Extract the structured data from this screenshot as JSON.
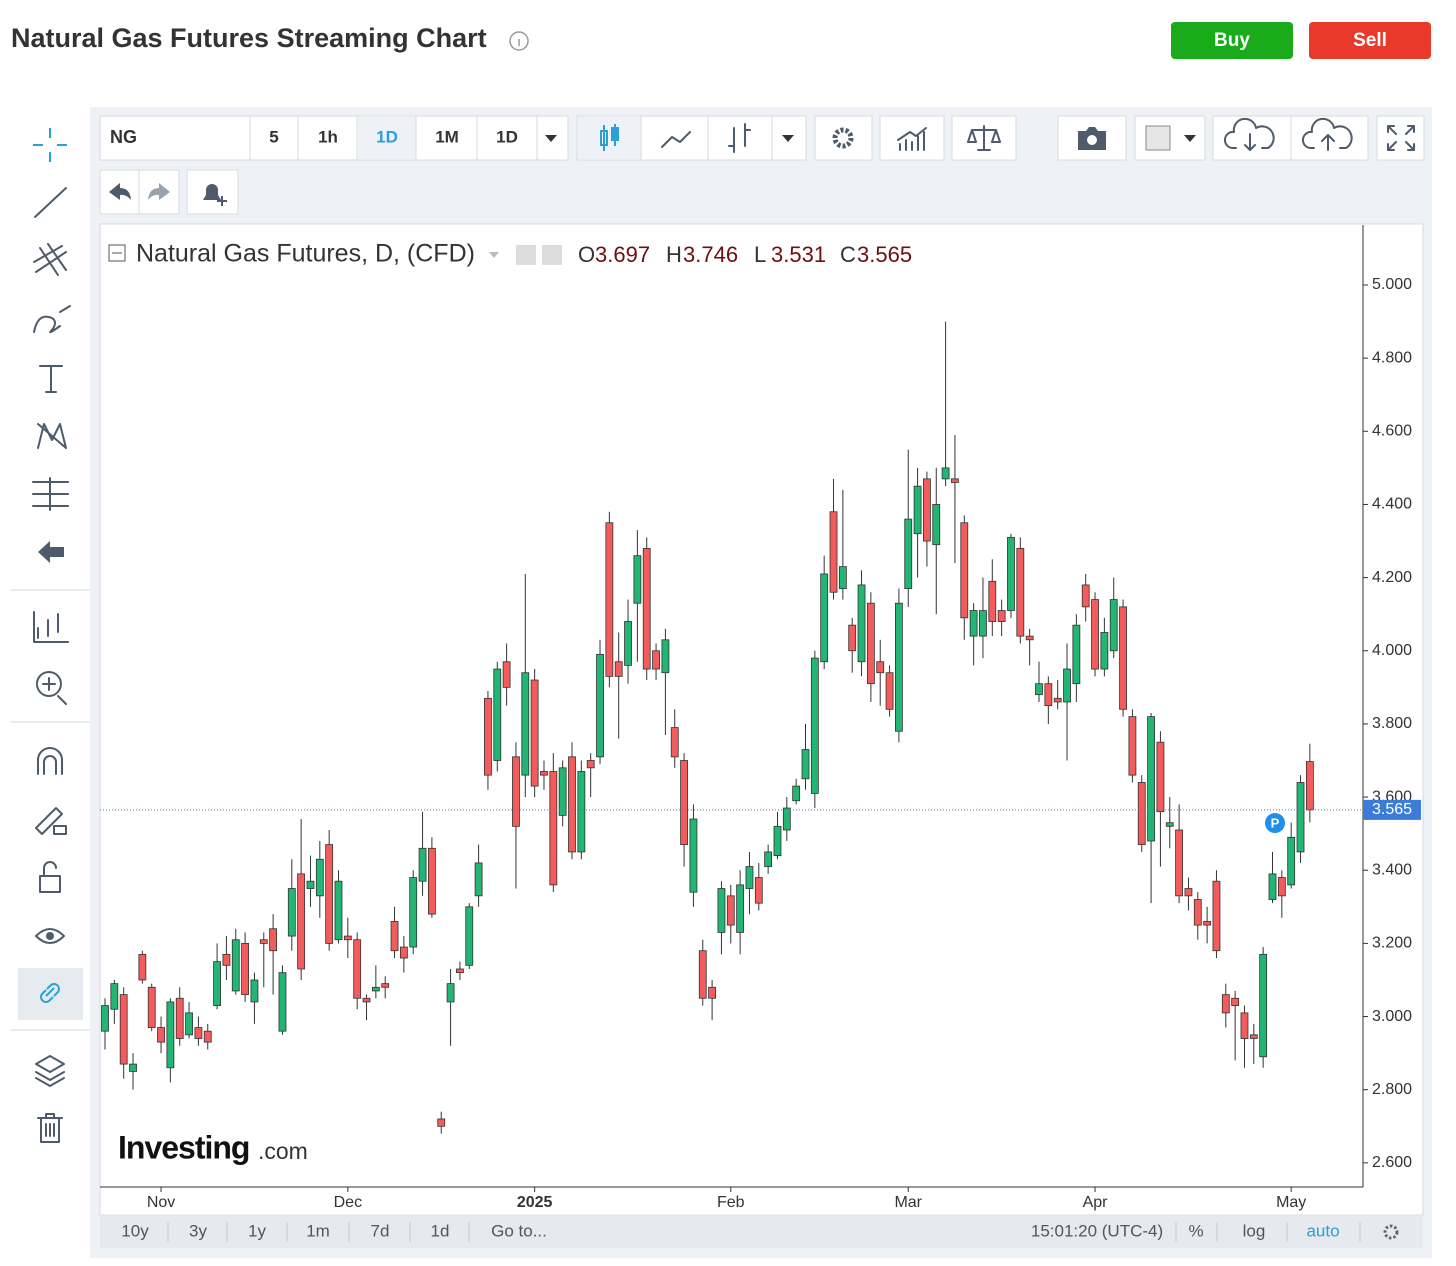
{
  "header": {
    "title": "Natural Gas Futures Streaming Chart",
    "buy": "Buy",
    "sell": "Sell"
  },
  "toolbar": {
    "symbol": "NG",
    "intervals": [
      "5",
      "1h",
      "1D",
      "1M",
      "1D"
    ]
  },
  "footer": {
    "ranges": [
      "10y",
      "3y",
      "1y",
      "1m",
      "7d",
      "1d"
    ],
    "goto": "Go to...",
    "time": "15:01:20 (UTC-4)",
    "percent": "%",
    "log": "log",
    "auto": "auto"
  },
  "chart_data": {
    "type": "candlestick",
    "title": "Natural Gas Futures, D, (CFD)",
    "ohlc_labels": [
      "O",
      "H",
      "L",
      "C"
    ],
    "watermark": {
      "brand": "Investing",
      "suffix": ".com"
    },
    "marker": "P",
    "up_color": "#22b573",
    "down_color": "#f25c5c",
    "price_line_color": "#3d7bd9",
    "categories": [
      null,
      null,
      null,
      null,
      null,
      null,
      "Nov",
      null,
      null,
      null,
      null,
      null,
      null,
      null,
      null,
      null,
      null,
      null,
      null,
      null,
      null,
      null,
      null,
      null,
      null,
      null,
      "Dec",
      null,
      null,
      null,
      null,
      null,
      null,
      null,
      null,
      null,
      null,
      null,
      null,
      null,
      null,
      null,
      null,
      null,
      null,
      null,
      "2025",
      null,
      null,
      null,
      null,
      null,
      null,
      null,
      null,
      null,
      null,
      null,
      null,
      null,
      null,
      null,
      null,
      null,
      null,
      null,
      null,
      "Feb",
      null,
      null,
      null,
      null,
      null,
      null,
      null,
      null,
      null,
      null,
      null,
      null,
      null,
      null,
      null,
      null,
      null,
      null,
      "Mar",
      null,
      null,
      null,
      null,
      null,
      null,
      null,
      null,
      null,
      null,
      null,
      null,
      null,
      null,
      null,
      null,
      null,
      null,
      null,
      "Apr",
      null,
      null,
      null,
      null,
      null,
      null,
      null,
      null,
      null,
      null,
      null,
      null,
      null,
      null,
      null,
      null,
      null,
      null,
      null,
      null,
      "May",
      null,
      null
    ],
    "open": [
      2.96,
      3.02,
      3.06,
      2.85,
      3.17,
      3.08,
      2.97,
      2.86,
      3.05,
      2.95,
      2.97,
      2.96,
      3.03,
      3.17,
      3.07,
      3.2,
      3.04,
      3.21,
      3.24,
      2.96,
      3.22,
      3.39,
      3.35,
      3.33,
      3.47,
      3.21,
      3.22,
      3.21,
      3.05,
      3.07,
      3.09,
      3.26,
      3.19,
      3.19,
      3.37,
      3.46,
      2.72,
      3.04,
      3.13,
      3.14,
      3.33,
      3.87,
      3.7,
      3.97,
      3.71,
      3.66,
      3.92,
      3.67,
      3.67,
      3.55,
      3.71,
      3.45,
      3.7,
      3.71,
      4.35,
      3.97,
      3.96,
      4.13,
      4.28,
      4.0,
      3.94,
      3.79,
      3.7,
      3.34,
      3.18,
      3.08,
      3.23,
      3.33,
      3.23,
      3.35,
      3.38,
      3.41,
      3.44,
      3.51,
      3.59,
      3.65,
      3.61,
      3.97,
      4.38,
      4.17,
      4.07,
      3.97,
      4.13,
      3.97,
      3.94,
      3.78,
      4.17,
      4.32,
      4.47,
      4.29,
      4.47,
      4.47,
      4.35,
      4.04,
      4.04,
      4.19,
      4.11,
      4.11,
      4.28,
      4.04,
      3.88,
      3.91,
      3.87,
      3.86,
      3.91,
      4.18,
      4.14,
      3.95,
      4.0,
      4.12,
      3.82,
      3.64,
      3.48,
      3.75,
      3.52,
      3.51,
      3.35,
      3.32,
      3.26,
      3.37,
      3.06,
      3.05,
      3.01,
      2.95,
      2.89,
      3.32,
      3.38,
      3.36,
      3.45,
      3.697
    ],
    "high": [
      3.05,
      3.1,
      3.08,
      2.9,
      3.18,
      3.09,
      3.0,
      3.05,
      3.08,
      3.04,
      3.0,
      2.98,
      3.2,
      3.22,
      3.24,
      3.23,
      3.12,
      3.23,
      3.28,
      3.14,
      3.43,
      3.54,
      3.44,
      3.48,
      3.51,
      3.4,
      3.27,
      3.23,
      3.06,
      3.14,
      3.11,
      3.3,
      3.22,
      3.4,
      3.56,
      3.49,
      2.74,
      3.13,
      3.15,
      3.31,
      3.47,
      3.89,
      3.97,
      4.02,
      3.75,
      4.21,
      3.95,
      3.7,
      3.72,
      3.7,
      3.75,
      3.7,
      3.72,
      4.03,
      4.38,
      4.05,
      4.14,
      4.33,
      4.31,
      4.02,
      4.06,
      3.84,
      3.72,
      3.58,
      3.21,
      3.1,
      3.37,
      3.36,
      3.4,
      3.45,
      3.42,
      3.47,
      3.56,
      3.6,
      3.65,
      3.8,
      4.0,
      4.26,
      4.47,
      4.44,
      4.09,
      4.22,
      4.16,
      4.03,
      3.96,
      4.17,
      4.55,
      4.5,
      4.49,
      4.5,
      4.9,
      4.59,
      4.37,
      4.13,
      4.2,
      4.25,
      4.14,
      4.32,
      4.31,
      4.06,
      3.97,
      3.93,
      3.92,
      4.02,
      4.1,
      4.21,
      4.16,
      4.09,
      4.2,
      4.14,
      3.84,
      3.66,
      3.83,
      3.78,
      3.6,
      3.58,
      3.38,
      3.34,
      3.3,
      3.4,
      3.09,
      3.07,
      3.03,
      2.98,
      3.19,
      3.45,
      3.4,
      3.53,
      3.66,
      3.746
    ],
    "low": [
      2.91,
      2.98,
      2.83,
      2.8,
      3.09,
      2.96,
      2.9,
      2.82,
      2.92,
      2.94,
      2.92,
      2.91,
      3.02,
      3.1,
      3.06,
      3.04,
      2.98,
      3.08,
      3.06,
      2.95,
      3.18,
      3.1,
      3.3,
      3.27,
      3.18,
      3.2,
      3.16,
      3.02,
      2.99,
      3.05,
      3.05,
      3.16,
      3.12,
      3.17,
      3.33,
      3.27,
      2.68,
      2.92,
      3.1,
      3.13,
      3.3,
      3.62,
      3.67,
      3.85,
      3.35,
      3.6,
      3.6,
      3.62,
      3.34,
      3.52,
      3.43,
      3.43,
      3.6,
      3.69,
      3.9,
      3.76,
      3.91,
      3.97,
      3.92,
      3.92,
      3.77,
      3.68,
      3.41,
      3.3,
      3.03,
      2.99,
      3.17,
      3.2,
      3.17,
      3.28,
      3.29,
      3.39,
      3.43,
      3.48,
      3.58,
      3.62,
      3.57,
      3.95,
      4.14,
      4.14,
      3.94,
      3.93,
      3.86,
      3.85,
      3.82,
      3.75,
      4.12,
      4.2,
      4.23,
      4.1,
      4.45,
      4.24,
      4.03,
      3.96,
      3.98,
      4.04,
      4.04,
      4.09,
      4.02,
      3.96,
      3.86,
      3.8,
      3.84,
      3.7,
      3.86,
      4.08,
      3.93,
      3.93,
      3.98,
      3.82,
      3.64,
      3.45,
      3.31,
      3.41,
      3.46,
      3.31,
      3.29,
      3.21,
      3.2,
      3.16,
      2.97,
      2.88,
      2.86,
      2.87,
      2.86,
      3.31,
      3.27,
      3.35,
      3.42,
      3.531
    ],
    "close": [
      3.03,
      3.09,
      2.87,
      2.87,
      3.1,
      2.97,
      2.93,
      3.04,
      2.94,
      3.01,
      2.94,
      2.93,
      3.15,
      3.14,
      3.21,
      3.06,
      3.1,
      3.2,
      3.18,
      3.12,
      3.35,
      3.13,
      3.37,
      3.43,
      3.2,
      3.37,
      3.21,
      3.05,
      3.04,
      3.08,
      3.08,
      3.18,
      3.16,
      3.38,
      3.46,
      3.28,
      2.7,
      3.09,
      3.12,
      3.3,
      3.42,
      3.66,
      3.95,
      3.9,
      3.52,
      3.94,
      3.63,
      3.66,
      3.36,
      3.68,
      3.45,
      3.67,
      3.68,
      3.99,
      3.93,
      3.93,
      4.08,
      4.26,
      3.95,
      3.95,
      4.03,
      3.71,
      3.47,
      3.54,
      3.05,
      3.05,
      3.35,
      3.25,
      3.36,
      3.41,
      3.31,
      3.45,
      3.52,
      3.57,
      3.63,
      3.73,
      3.98,
      4.21,
      4.16,
      4.23,
      4.0,
      4.18,
      3.91,
      3.94,
      3.84,
      4.13,
      4.36,
      4.45,
      4.3,
      4.4,
      4.5,
      4.46,
      4.09,
      4.11,
      4.11,
      4.08,
      4.08,
      4.31,
      4.04,
      4.03,
      3.91,
      3.85,
      3.86,
      3.95,
      4.07,
      4.12,
      3.95,
      4.05,
      4.14,
      3.84,
      3.66,
      3.47,
      3.82,
      3.56,
      3.53,
      3.33,
      3.33,
      3.25,
      3.25,
      3.18,
      3.01,
      3.03,
      2.94,
      2.94,
      3.17,
      3.39,
      3.33,
      3.49,
      3.64,
      3.565
    ],
    "ylim": [
      2.534,
      5.164
    ],
    "yticks": [
      {
        "value": 2.6,
        "label": "2.600"
      },
      {
        "value": 2.8,
        "label": "2.800"
      },
      {
        "value": 3.0,
        "label": "3.000"
      },
      {
        "value": 3.2,
        "label": "3.200"
      },
      {
        "value": 3.4,
        "label": "3.400"
      },
      {
        "value": 3.6,
        "label": "3.600"
      },
      {
        "value": 3.8,
        "label": "3.800"
      },
      {
        "value": 4.0,
        "label": "4.000"
      },
      {
        "value": 4.2,
        "label": "4.200"
      },
      {
        "value": 4.4,
        "label": "4.400"
      },
      {
        "value": 4.6,
        "label": "4.600"
      },
      {
        "value": 4.8,
        "label": "4.800"
      },
      {
        "value": 5.0,
        "label": "5.000"
      }
    ],
    "grid": false
  }
}
